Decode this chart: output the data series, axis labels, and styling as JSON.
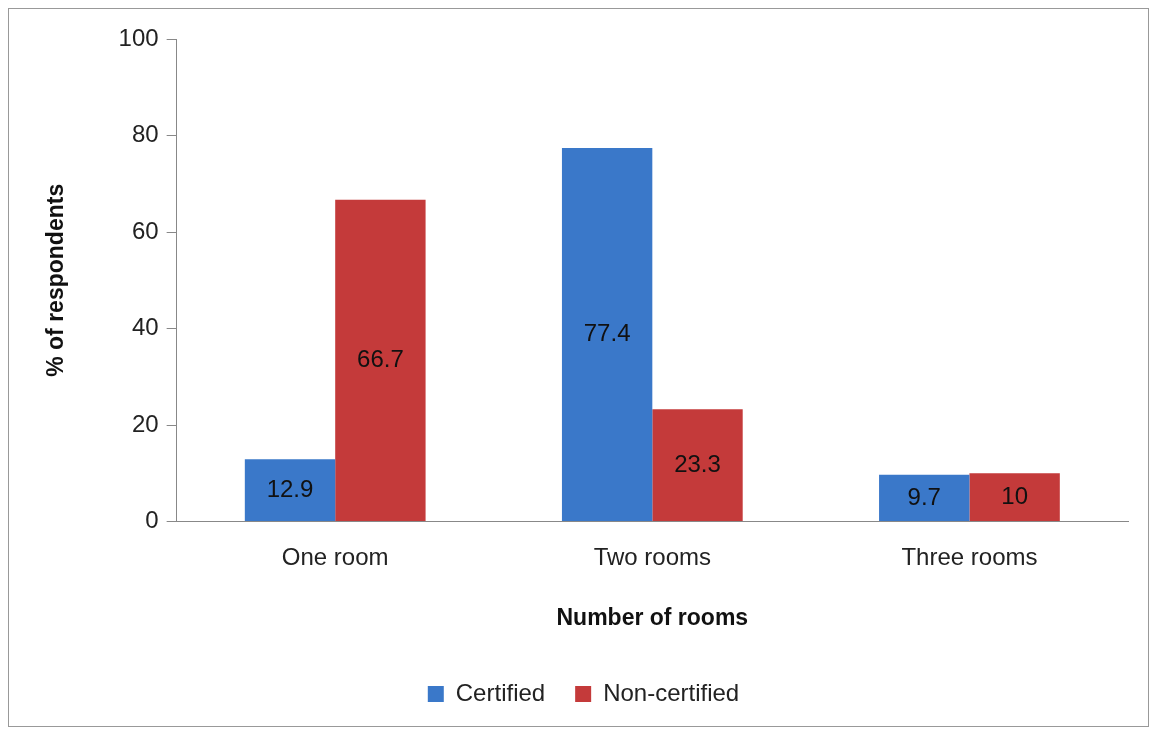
{
  "chart_data": {
    "type": "bar",
    "xlabel": "Number of rooms",
    "ylabel": "% of respondents",
    "categories": [
      "One room",
      "Two rooms",
      "Three rooms"
    ],
    "series": [
      {
        "name": "Certified",
        "color": "#3a78c9",
        "values": [
          12.9,
          77.4,
          9.7
        ]
      },
      {
        "name": "Non-certified",
        "color": "#c43a3a",
        "values": [
          66.7,
          23.3,
          10
        ]
      }
    ],
    "ylim": [
      0,
      100
    ],
    "yticks": [
      0,
      20,
      40,
      60,
      80,
      100
    ],
    "grid": false,
    "legend": "bottom",
    "data_labels": true
  }
}
